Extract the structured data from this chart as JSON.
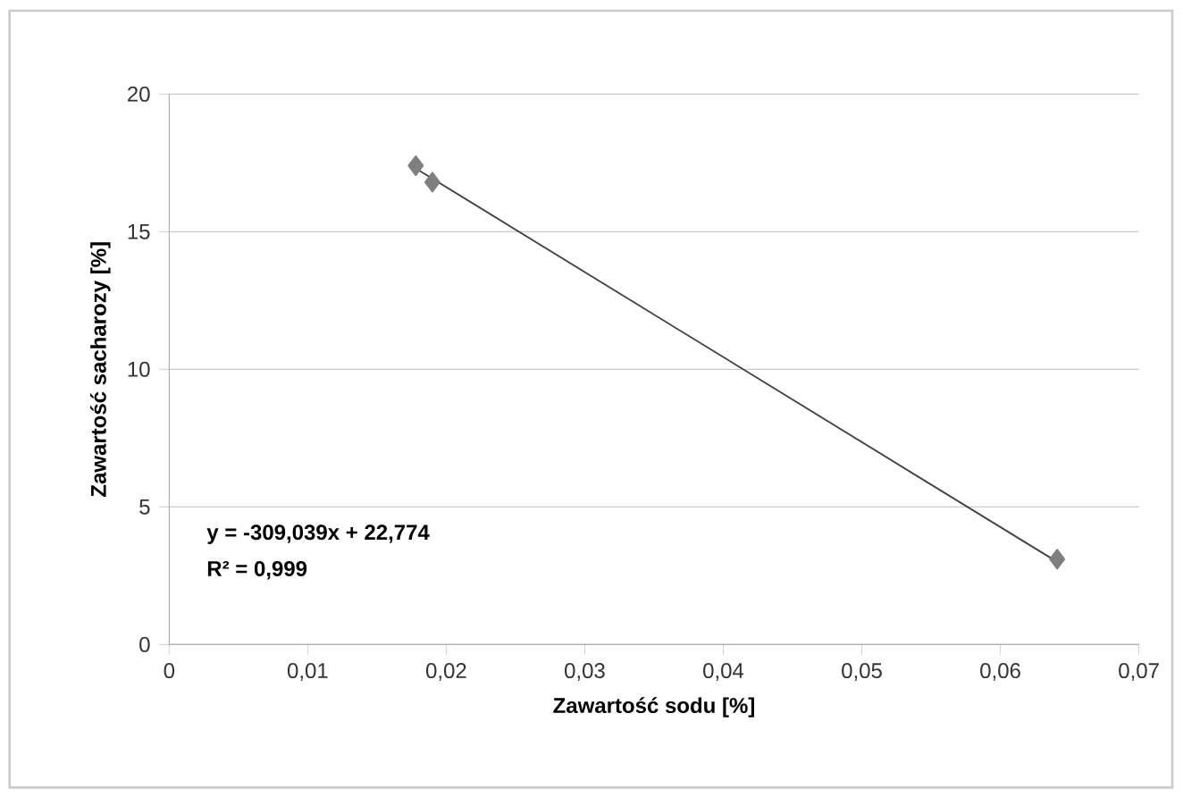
{
  "chart_data": {
    "type": "scatter",
    "xlabel": "Zawartość sodu [%]",
    "ylabel": "Zawartość sacharozy [%]",
    "xlim": [
      0,
      0.07
    ],
    "ylim": [
      0,
      20
    ],
    "xticks": [
      0,
      {
        "value": 0.01,
        "label": "0,01"
      },
      {
        "value": 0.02,
        "label": "0,02"
      },
      {
        "value": 0.03,
        "label": "0,03"
      },
      {
        "value": 0.04,
        "label": "0,04"
      },
      {
        "value": 0.05,
        "label": "0,05"
      },
      {
        "value": 0.06,
        "label": "0,06"
      },
      {
        "value": 0.07,
        "label": "0,07"
      }
    ],
    "yticks": [
      0,
      5,
      10,
      15,
      20
    ],
    "grid": "y",
    "series": [
      {
        "marker": "diamond",
        "color": "#7f7f7f",
        "x": [
          0.0178,
          0.019,
          0.0641
        ],
        "values": [
          17.4,
          16.8,
          3.1
        ]
      },
      {
        "type": "line",
        "marker": "none",
        "color": "#404040",
        "x": [
          0.0178,
          0.0641
        ],
        "values": [
          17.3,
          3.0
        ]
      }
    ],
    "annotations": [
      "y = -309,039x + 22,774",
      "R² = 0,999"
    ]
  }
}
